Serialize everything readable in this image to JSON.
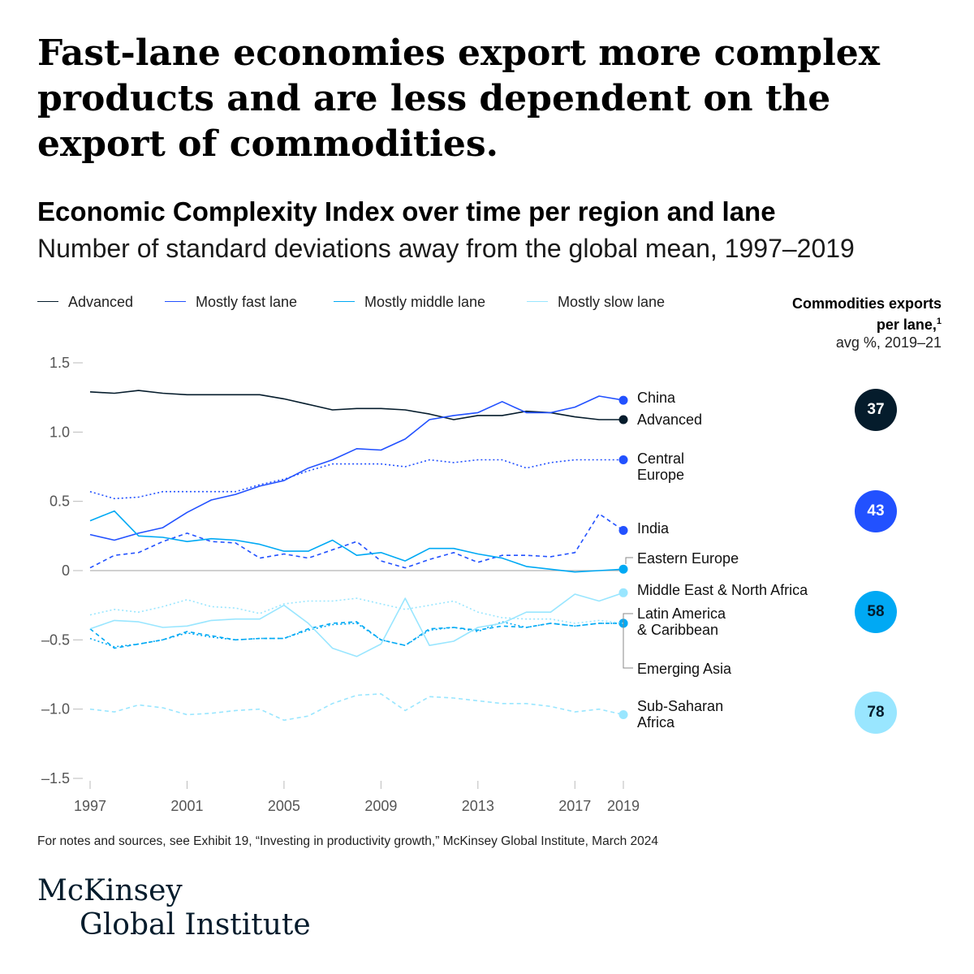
{
  "headline": "Fast-lane economies export more complex products and are less dependent on the export of commodities.",
  "chart_title": "Economic Complexity Index over time per region and lane",
  "chart_subtitle": "Number of standard deviations away from the global mean, 1997–2019",
  "legend": [
    {
      "label": "Advanced",
      "color": "#051c2c"
    },
    {
      "label": "Mostly fast lane",
      "color": "#2251ff"
    },
    {
      "label": "Mostly middle lane",
      "color": "#00a9f4"
    },
    {
      "label": "Mostly slow lane",
      "color": "#99e6ff"
    }
  ],
  "side_panel": {
    "title_line1": "Commodities exports",
    "title_line2": "per lane,",
    "footnote_marker": "1",
    "subtitle": "avg %, 2019–21",
    "badges": [
      {
        "value": "37",
        "lane": "Advanced",
        "color": "#051c2c",
        "text_color": "#ffffff"
      },
      {
        "value": "43",
        "lane": "Mostly fast lane",
        "color": "#2251ff",
        "text_color": "#ffffff"
      },
      {
        "value": "58",
        "lane": "Mostly middle lane",
        "color": "#00a9f4",
        "text_color": "#051c2c"
      },
      {
        "value": "78",
        "lane": "Mostly slow lane",
        "color": "#99e6ff",
        "text_color": "#051c2c"
      }
    ]
  },
  "chart_data": {
    "type": "line",
    "title": "Economic Complexity Index over time per region and lane",
    "subtitle": "Number of standard deviations away from the global mean, 1997–2019",
    "x": [
      1997,
      1998,
      1999,
      2000,
      2001,
      2002,
      2003,
      2004,
      2005,
      2006,
      2007,
      2008,
      2009,
      2010,
      2011,
      2012,
      2013,
      2014,
      2015,
      2016,
      2017,
      2018,
      2019
    ],
    "x_ticks": [
      "1997",
      "2001",
      "2005",
      "2009",
      "2013",
      "2017",
      "2019"
    ],
    "y_ticks": [
      "1.5",
      "1.0",
      "0.5",
      "0",
      "–0.5",
      "–1.0",
      "–1.5"
    ],
    "ylim": [
      -1.5,
      1.5
    ],
    "zero_line": true,
    "series": [
      {
        "name": "Advanced",
        "lane": "Advanced",
        "color": "#051c2c",
        "dash": "solid",
        "label_lines": [
          "Advanced"
        ],
        "values": [
          1.29,
          1.28,
          1.3,
          1.28,
          1.27,
          1.27,
          1.27,
          1.27,
          1.24,
          1.2,
          1.16,
          1.17,
          1.17,
          1.16,
          1.13,
          1.09,
          1.12,
          1.12,
          1.15,
          1.14,
          1.11,
          1.09,
          1.09
        ]
      },
      {
        "name": "China",
        "lane": "Mostly fast lane",
        "color": "#2251ff",
        "dash": "solid",
        "label_lines": [
          "China"
        ],
        "values": [
          0.26,
          0.22,
          0.27,
          0.31,
          0.42,
          0.51,
          0.55,
          0.61,
          0.65,
          0.74,
          0.8,
          0.88,
          0.87,
          0.95,
          1.09,
          1.12,
          1.14,
          1.22,
          1.14,
          1.14,
          1.18,
          1.26,
          1.23
        ]
      },
      {
        "name": "Central Europe",
        "lane": "Mostly fast lane",
        "color": "#2251ff",
        "dash": "dotted",
        "label_lines": [
          "Central",
          "Europe"
        ],
        "values": [
          0.57,
          0.52,
          0.53,
          0.57,
          0.57,
          0.57,
          0.57,
          0.62,
          0.66,
          0.72,
          0.77,
          0.77,
          0.77,
          0.75,
          0.8,
          0.78,
          0.8,
          0.8,
          0.74,
          0.78,
          0.8,
          0.8,
          0.8
        ]
      },
      {
        "name": "India",
        "lane": "Mostly fast lane",
        "color": "#2251ff",
        "dash": "dashed",
        "label_lines": [
          "India"
        ],
        "values": [
          0.02,
          0.11,
          0.13,
          0.21,
          0.27,
          0.21,
          0.2,
          0.09,
          0.12,
          0.09,
          0.15,
          0.21,
          0.07,
          0.02,
          0.08,
          0.13,
          0.06,
          0.11,
          0.11,
          0.1,
          0.13,
          0.41,
          0.29
        ]
      },
      {
        "name": "Eastern Europe",
        "lane": "Mostly middle lane",
        "color": "#00a9f4",
        "dash": "solid",
        "label_lines": [
          "Eastern Europe"
        ],
        "values": [
          0.36,
          0.43,
          0.25,
          0.24,
          0.21,
          0.23,
          0.22,
          0.19,
          0.14,
          0.14,
          0.22,
          0.11,
          0.13,
          0.07,
          0.16,
          0.16,
          0.12,
          0.09,
          0.03,
          0.01,
          -0.01,
          0.0,
          0.01
        ]
      },
      {
        "name": "Latin America & Caribbean",
        "lane": "Mostly middle lane",
        "color": "#00a9f4",
        "dash": "dashed",
        "label_lines": [
          "Latin America",
          "& Caribbean"
        ],
        "values": [
          -0.42,
          -0.56,
          -0.53,
          -0.5,
          -0.44,
          -0.47,
          -0.5,
          -0.49,
          -0.49,
          -0.42,
          -0.38,
          -0.37,
          -0.5,
          -0.54,
          -0.42,
          -0.41,
          -0.43,
          -0.4,
          -0.41,
          -0.38,
          -0.4,
          -0.38,
          -0.38
        ]
      },
      {
        "name": "Emerging Asia",
        "lane": "Mostly middle lane",
        "color": "#00a9f4",
        "dash": "dotted",
        "label_lines": [
          "Emerging Asia"
        ],
        "values": [
          -0.49,
          -0.55,
          -0.53,
          -0.5,
          -0.45,
          -0.48,
          -0.5,
          -0.49,
          -0.49,
          -0.43,
          -0.39,
          -0.38,
          -0.5,
          -0.54,
          -0.43,
          -0.41,
          -0.44,
          -0.37,
          -0.41,
          -0.38,
          -0.4,
          -0.38,
          -0.38
        ]
      },
      {
        "name": "Middle East & North Africa",
        "lane": "Mostly slow lane",
        "color": "#99e6ff",
        "dash": "solid",
        "label_lines": [
          "Middle East & North Africa"
        ],
        "values": [
          -0.42,
          -0.36,
          -0.37,
          -0.41,
          -0.4,
          -0.36,
          -0.35,
          -0.35,
          -0.25,
          -0.38,
          -0.56,
          -0.62,
          -0.53,
          -0.2,
          -0.54,
          -0.51,
          -0.41,
          -0.38,
          -0.3,
          -0.3,
          -0.17,
          -0.22,
          -0.16
        ]
      },
      {
        "name": "Mostly slow lane (dotted)",
        "lane": "Mostly slow lane",
        "color": "#99e6ff",
        "dash": "dotted",
        "label_lines": [],
        "values": [
          -0.32,
          -0.28,
          -0.3,
          -0.26,
          -0.21,
          -0.26,
          -0.27,
          -0.31,
          -0.24,
          -0.22,
          -0.22,
          -0.2,
          -0.24,
          -0.28,
          -0.25,
          -0.22,
          -0.3,
          -0.34,
          -0.35,
          -0.35,
          -0.38,
          -0.36,
          -0.38
        ]
      },
      {
        "name": "Sub-Saharan Africa",
        "lane": "Mostly slow lane",
        "color": "#99e6ff",
        "dash": "dashed",
        "label_lines": [
          "Sub-Saharan",
          "Africa"
        ],
        "values": [
          -1.0,
          -1.02,
          -0.97,
          -0.99,
          -1.04,
          -1.03,
          -1.01,
          -1.0,
          -1.08,
          -1.05,
          -0.96,
          -0.9,
          -0.89,
          -1.01,
          -0.91,
          -0.92,
          -0.94,
          -0.96,
          -0.96,
          -0.98,
          -1.02,
          -1.0,
          -1.04
        ]
      }
    ]
  },
  "footnote": "For notes and sources, see Exhibit 19, “Investing in productivity growth,” McKinsey Global Institute, March 2024",
  "logo": {
    "line1": "McKinsey",
    "line2": "Global Institute"
  }
}
